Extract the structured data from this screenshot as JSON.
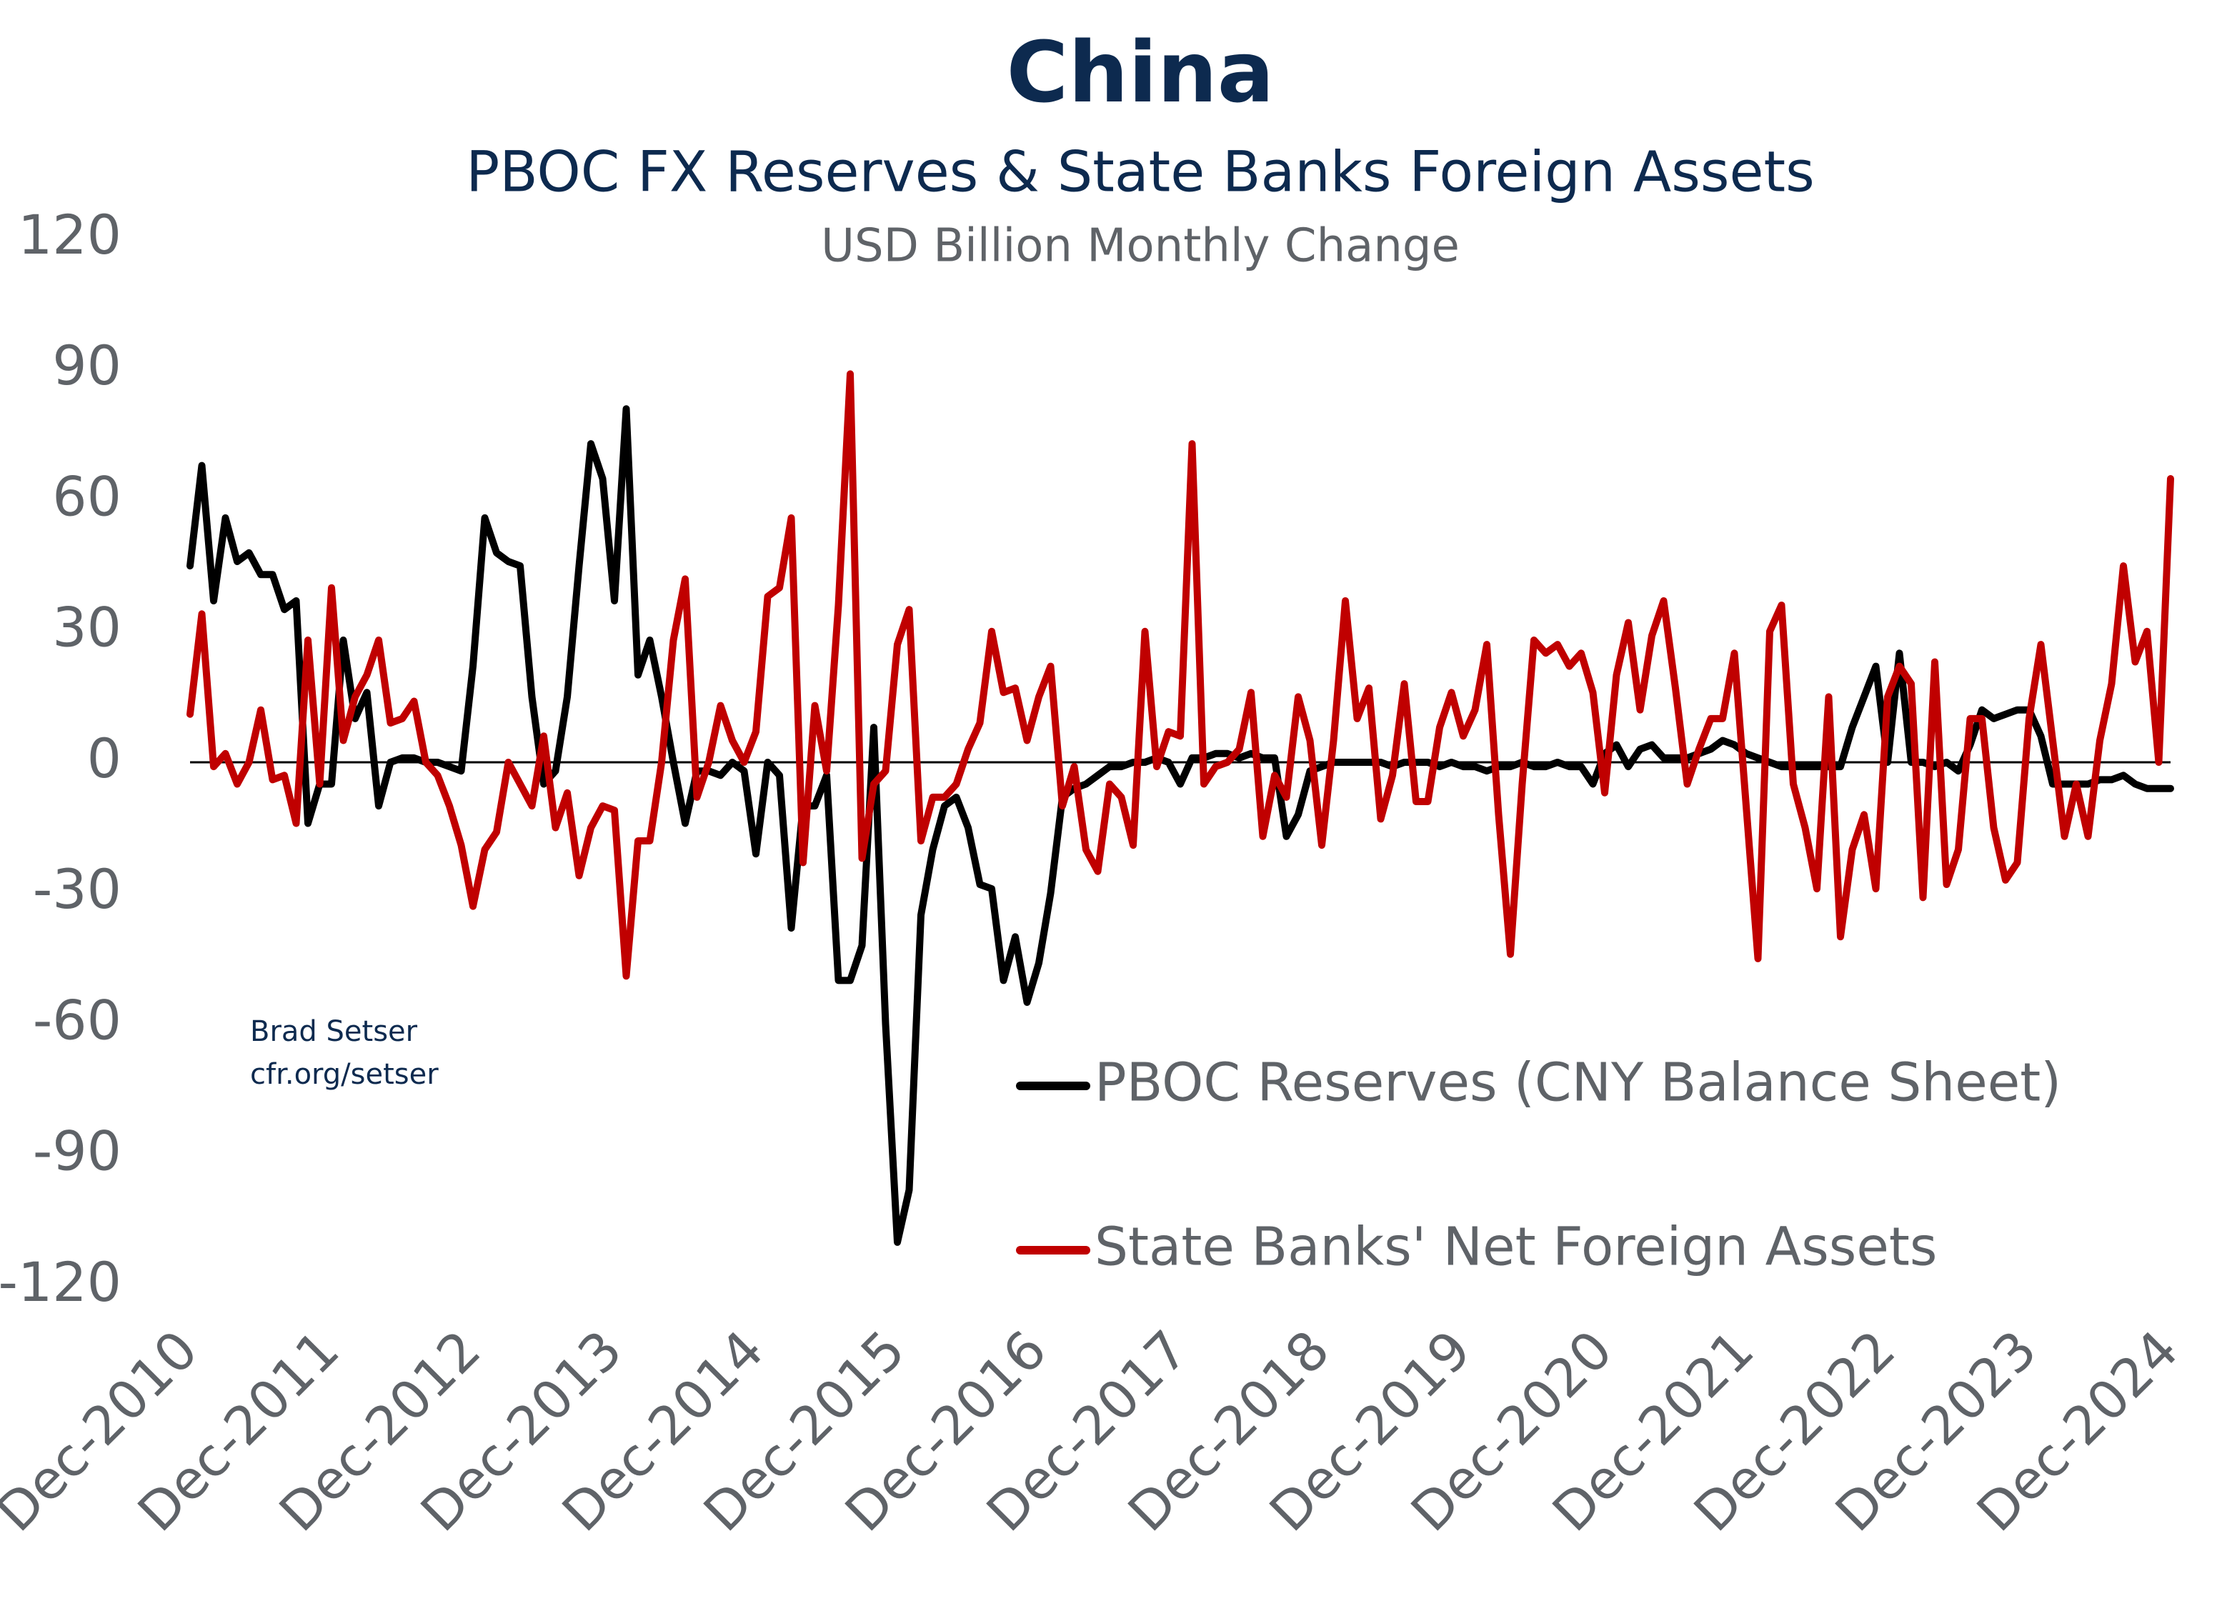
{
  "chart_data": {
    "type": "line",
    "title": "China",
    "subtitle": "PBOC FX Reserves & State Banks Foreign Assets",
    "y_label": "USD Billion Monthly Change",
    "annotations": [
      "Brad Setser",
      "cfr.org/setser"
    ],
    "categories": [
      "Dec-2010",
      null,
      null,
      null,
      null,
      null,
      null,
      null,
      null,
      null,
      null,
      null,
      "Dec-2011",
      null,
      null,
      null,
      null,
      null,
      null,
      null,
      null,
      null,
      null,
      null,
      "Dec-2012",
      null,
      null,
      null,
      null,
      null,
      null,
      null,
      null,
      null,
      null,
      null,
      "Dec-2013",
      null,
      null,
      null,
      null,
      null,
      null,
      null,
      null,
      null,
      null,
      null,
      "Dec-2014",
      null,
      null,
      null,
      null,
      null,
      null,
      null,
      null,
      null,
      null,
      null,
      "Dec-2015",
      null,
      null,
      null,
      null,
      null,
      null,
      null,
      null,
      null,
      null,
      null,
      "Dec-2016",
      null,
      null,
      null,
      null,
      null,
      null,
      null,
      null,
      null,
      null,
      null,
      "Dec-2017",
      null,
      null,
      null,
      null,
      null,
      null,
      null,
      null,
      null,
      null,
      null,
      "Dec-2018",
      null,
      null,
      null,
      null,
      null,
      null,
      null,
      null,
      null,
      null,
      null,
      "Dec-2019",
      null,
      null,
      null,
      null,
      null,
      null,
      null,
      null,
      null,
      null,
      null,
      "Dec-2020",
      null,
      null,
      null,
      null,
      null,
      null,
      null,
      null,
      null,
      null,
      null,
      "Dec-2021",
      null,
      null,
      null,
      null,
      null,
      null,
      null,
      null,
      null,
      null,
      null,
      "Dec-2022",
      null,
      null,
      null,
      null,
      null,
      null,
      null,
      null,
      null,
      null,
      null,
      "Dec-2023",
      null,
      null,
      null,
      null,
      null,
      null,
      null,
      null,
      null,
      null,
      null,
      "Dec-2024"
    ],
    "series": [
      {
        "name": "PBOC Reserves (CNY Balance Sheet)",
        "color": "#000000",
        "values": [
          45,
          68,
          37,
          56,
          46,
          48,
          43,
          43,
          35,
          37,
          -14,
          -5,
          -5,
          28,
          10,
          16,
          -10,
          0,
          1,
          1,
          0,
          0,
          -1,
          -2,
          22,
          56,
          48,
          46,
          45,
          15,
          -5,
          -2,
          15,
          45,
          73,
          65,
          37,
          81,
          20,
          28,
          15,
          0,
          -14,
          -2,
          -2,
          -3,
          0,
          -2,
          -21,
          0,
          -3,
          -38,
          -10,
          -10,
          -3,
          -50,
          -50,
          -42,
          8,
          -60,
          -110,
          -98,
          -35,
          -20,
          -10,
          -8,
          -15,
          -28,
          -29,
          -50,
          -40,
          -55,
          -46,
          -30,
          -8,
          -6,
          -5,
          -3,
          -1,
          -1,
          0,
          0,
          1,
          0,
          -5,
          1,
          1,
          2,
          2,
          1,
          2,
          1,
          1,
          -17,
          -12,
          -2,
          -1,
          0,
          0,
          0,
          0,
          0,
          -1,
          0,
          0,
          0,
          -1,
          0,
          -1,
          -1,
          -2,
          -1,
          -1,
          0,
          -1,
          -1,
          0,
          -1,
          -1,
          -5,
          2,
          4,
          -1,
          3,
          4,
          1,
          1,
          1,
          2,
          3,
          5,
          4,
          2,
          1,
          0,
          -1,
          -1,
          -1,
          -1,
          -1,
          -1,
          8,
          15,
          22,
          0,
          25,
          0,
          0,
          -1,
          0,
          -2,
          4,
          12,
          10,
          11,
          12,
          12,
          6,
          -5,
          -5,
          -5,
          -5,
          -4,
          -4,
          -3,
          -5,
          -6,
          -6,
          -6
        ]
      },
      {
        "name": "State Banks' Net Foreign Assets",
        "color": "#c00000",
        "values": [
          11,
          34,
          -1,
          2,
          -5,
          0,
          12,
          -4,
          -3,
          -14,
          28,
          -5,
          40,
          5,
          15,
          20,
          28,
          9,
          10,
          14,
          0,
          -3,
          -10,
          -19,
          -33,
          -20,
          -16,
          0,
          -5,
          -10,
          6,
          -15,
          -7,
          -26,
          -15,
          -10,
          -11,
          -49,
          -18,
          -18,
          0,
          28,
          42,
          -8,
          0,
          13,
          5,
          0,
          7,
          38,
          40,
          56,
          -23,
          13,
          -2,
          36,
          89,
          -22,
          -5,
          -2,
          27,
          35,
          -18,
          -8,
          -8,
          -5,
          3,
          9,
          30,
          16,
          17,
          5,
          15,
          22,
          -10,
          -1,
          -20,
          -25,
          -5,
          -8,
          -19,
          30,
          -1,
          7,
          6,
          73,
          -5,
          -1,
          0,
          3,
          16,
          -17,
          -3,
          -8,
          15,
          5,
          -19,
          5,
          37,
          10,
          17,
          -13,
          -3,
          18,
          -9,
          -9,
          8,
          16,
          6,
          12,
          27,
          -12,
          -44,
          -5,
          28,
          25,
          27,
          22,
          25,
          16,
          -7,
          20,
          32,
          12,
          29,
          37,
          17,
          -5,
          3,
          10,
          10,
          25,
          -10,
          -45,
          30,
          36,
          -5,
          -15,
          -29,
          15,
          -40,
          -20,
          -12,
          -29,
          15,
          22,
          18,
          -31,
          23,
          -28,
          -20,
          10,
          10,
          -15,
          -27,
          -23,
          10,
          27,
          5,
          -17,
          -5,
          -17,
          5,
          18,
          45,
          23,
          30,
          0,
          65
        ]
      }
    ],
    "ylim": [
      -120,
      120
    ],
    "yticks": [
      -120,
      -90,
      -60,
      -30,
      0,
      30,
      60,
      90,
      120
    ],
    "grid": false
  }
}
